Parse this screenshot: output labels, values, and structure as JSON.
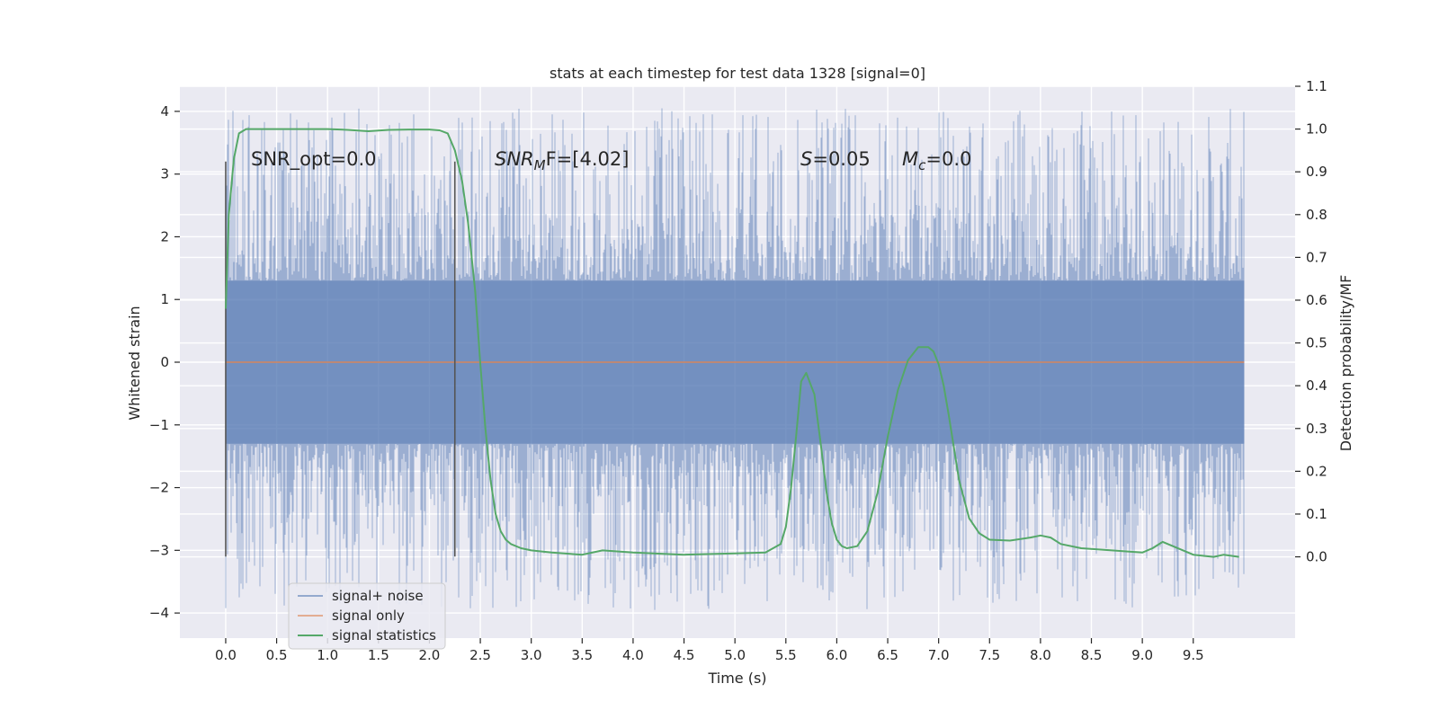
{
  "chart_data": {
    "type": "line",
    "title": "stats at each timestep for test data 1328 [signal=0]",
    "xlabel": "Time (s)",
    "ylabel": "Whitened strain",
    "y2label": "Detection probability/MF",
    "xlim": [
      -0.45,
      10.5
    ],
    "ylim": [
      -4.4,
      4.4
    ],
    "y2lim": [
      -0.19,
      1.1
    ],
    "xticks": [
      0.0,
      0.5,
      1.0,
      1.5,
      2.0,
      2.5,
      3.0,
      3.5,
      4.0,
      4.5,
      5.0,
      5.5,
      6.0,
      6.5,
      7.0,
      7.5,
      8.0,
      8.5,
      9.0,
      9.5
    ],
    "xtick_labels": [
      "0.0",
      "0.5",
      "1.0",
      "1.5",
      "2.0",
      "2.5",
      "3.0",
      "3.5",
      "4.0",
      "4.5",
      "5.0",
      "5.5",
      "6.0",
      "6.5",
      "7.0",
      "7.5",
      "8.0",
      "8.5",
      "9.0",
      "9.5"
    ],
    "yticks": [
      -4,
      -3,
      -2,
      -1,
      0,
      1,
      2,
      3,
      4
    ],
    "ytick_labels": [
      "−4",
      "−3",
      "−2",
      "−1",
      "0",
      "1",
      "2",
      "3",
      "4"
    ],
    "y2ticks": [
      0.0,
      0.1,
      0.2,
      0.3,
      0.4,
      0.5,
      0.6,
      0.7,
      0.8,
      0.9,
      1.0,
      1.1
    ],
    "y2tick_labels": [
      "0.0",
      "0.1",
      "0.2",
      "0.3",
      "0.4",
      "0.5",
      "0.6",
      "0.7",
      "0.8",
      "0.9",
      "1.0",
      "1.1"
    ],
    "grid": true,
    "legend_position": "lower-left",
    "annotations": {
      "snr_opt": "SNR_opt=0.0",
      "snr_mf_base": "SNR",
      "snr_mf_sub": "M",
      "snr_mf_rest": "F=[4.02]",
      "s_base": "S",
      "s_rest": "=0.05",
      "mc_base": "M",
      "mc_sub": "c",
      "mc_rest": "=0.0"
    },
    "vertical_lines": [
      0.0,
      2.25
    ],
    "series": [
      {
        "name": "signal+ noise",
        "color": "#4c72b0",
        "x_range": [
          0.0,
          10.0
        ],
        "envelope_upper": 1.3,
        "envelope_lower": -1.3,
        "spike_max": 4.05,
        "spike_min": -3.95
      },
      {
        "name": "signal only",
        "color": "#dd8452",
        "x": [
          0.0,
          10.0
        ],
        "y": [
          0.0,
          0.0
        ]
      },
      {
        "name": "signal statistics",
        "color": "#55a868",
        "axis": "right",
        "x": [
          0.0,
          0.03,
          0.08,
          0.13,
          0.2,
          0.3,
          0.5,
          0.8,
          1.0,
          1.2,
          1.4,
          1.6,
          1.8,
          2.0,
          2.1,
          2.18,
          2.25,
          2.32,
          2.38,
          2.45,
          2.5,
          2.55,
          2.6,
          2.65,
          2.7,
          2.75,
          2.8,
          2.9,
          3.0,
          3.2,
          3.5,
          3.7,
          4.0,
          4.5,
          5.0,
          5.3,
          5.45,
          5.5,
          5.55,
          5.6,
          5.65,
          5.7,
          5.78,
          5.85,
          5.9,
          5.95,
          6.0,
          6.05,
          6.1,
          6.2,
          6.3,
          6.4,
          6.5,
          6.6,
          6.7,
          6.8,
          6.9,
          6.95,
          7.0,
          7.05,
          7.1,
          7.2,
          7.3,
          7.4,
          7.5,
          7.7,
          7.9,
          8.0,
          8.1,
          8.2,
          8.4,
          8.7,
          9.0,
          9.1,
          9.2,
          9.3,
          9.5,
          9.7,
          9.8,
          9.95
        ],
        "y": [
          0.58,
          0.8,
          0.93,
          0.99,
          1.0,
          1.0,
          1.0,
          1.0,
          1.0,
          0.998,
          0.995,
          0.998,
          0.999,
          0.999,
          0.997,
          0.99,
          0.95,
          0.88,
          0.78,
          0.62,
          0.45,
          0.3,
          0.18,
          0.1,
          0.06,
          0.04,
          0.03,
          0.02,
          0.015,
          0.01,
          0.005,
          0.015,
          0.01,
          0.005,
          0.008,
          0.01,
          0.03,
          0.07,
          0.16,
          0.28,
          0.41,
          0.43,
          0.38,
          0.25,
          0.15,
          0.08,
          0.04,
          0.025,
          0.02,
          0.025,
          0.06,
          0.15,
          0.28,
          0.39,
          0.46,
          0.49,
          0.49,
          0.48,
          0.45,
          0.4,
          0.33,
          0.18,
          0.09,
          0.055,
          0.04,
          0.038,
          0.045,
          0.05,
          0.045,
          0.03,
          0.02,
          0.015,
          0.01,
          0.02,
          0.035,
          0.025,
          0.005,
          0.0,
          0.005,
          0.0
        ]
      }
    ]
  }
}
